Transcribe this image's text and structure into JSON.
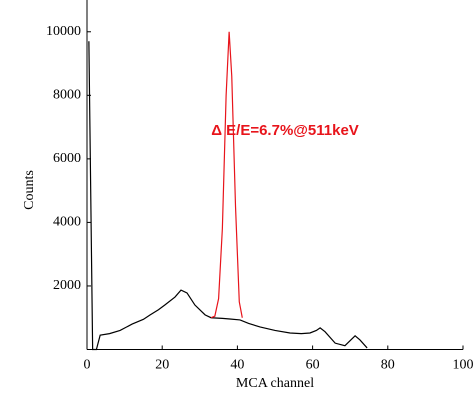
{
  "chart_data": {
    "type": "line",
    "xlabel": "MCA channel",
    "ylabel": "Counts",
    "annotation": "Δ E/E=6.7%@511keV",
    "xlim": [
      0,
      100
    ],
    "ylim": [
      0,
      11000
    ],
    "xticks": [
      0,
      20,
      40,
      60,
      80,
      100
    ],
    "yticks": [
      2000,
      4000,
      6000,
      8000,
      10000
    ],
    "series": [
      {
        "color": "#000000",
        "x": [
          0.5,
          1.5,
          2.5,
          3.5,
          6,
          8.8,
          12,
          15,
          16.8,
          19,
          20.7,
          23.4,
          25,
          26.6,
          28.7,
          31.4,
          33,
          36,
          38,
          40.7,
          43,
          46,
          50,
          54,
          57,
          59.3,
          61,
          62,
          63.3,
          66,
          68.6,
          71.3,
          72.6,
          74.5
        ],
        "values": [
          9700,
          0,
          0,
          450,
          500,
          600,
          800,
          950,
          1090,
          1250,
          1400,
          1650,
          1870,
          1780,
          1400,
          1090,
          1000,
          980,
          960,
          930,
          820,
          710,
          600,
          520,
          500,
          520,
          600,
          680,
          560,
          200,
          120,
          430,
          300,
          50
        ]
      },
      {
        "color": "#e8141b",
        "x": [
          33,
          34,
          35,
          36,
          37,
          37.8,
          38.5,
          39.5,
          40.5,
          41.3
        ],
        "values": [
          1000,
          1050,
          1600,
          3800,
          8000,
          10000,
          8600,
          4500,
          1500,
          1000
        ]
      }
    ]
  }
}
